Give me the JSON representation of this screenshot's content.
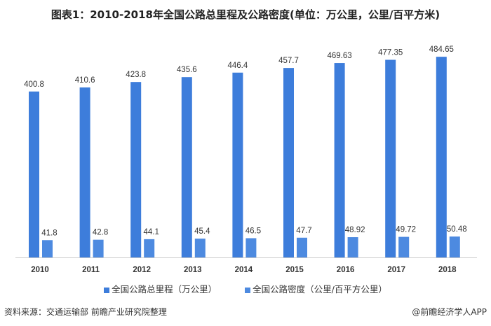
{
  "chart_data": {
    "type": "bar",
    "title": "图表1：2010-2018年全国公路总里程及公路密度(单位：万公里，公里/百平方米)",
    "categories": [
      "2010",
      "2011",
      "2012",
      "2013",
      "2014",
      "2015",
      "2016",
      "2017",
      "2018"
    ],
    "series": [
      {
        "name": "全国公路总里程（万公里）",
        "color": "#3d7ddb",
        "values": [
          400.8,
          410.6,
          423.8,
          435.6,
          446.4,
          457.7,
          469.63,
          477.35,
          484.65
        ],
        "labels": [
          "400.8",
          "410.6",
          "423.8",
          "435.6",
          "446.4",
          "457.7",
          "469.63",
          "477.35",
          "484.65"
        ]
      },
      {
        "name": "全国公路密度（公里/百平方公里）",
        "color": "#4d8ae0",
        "values": [
          41.8,
          42.8,
          44.1,
          45.4,
          46.5,
          47.7,
          48.92,
          49.72,
          50.48
        ],
        "labels": [
          "41.8",
          "42.8",
          "44.1",
          "45.4",
          "46.5",
          "47.7",
          "48.92",
          "49.72",
          "50.48"
        ]
      }
    ],
    "ylim": [
      0,
      490
    ],
    "grid": false,
    "legend": "bottom"
  },
  "footer": {
    "source": "资料来源：交通运输部 前瞻产业研究院整理",
    "brand": "@前瞻经济学人APP"
  }
}
